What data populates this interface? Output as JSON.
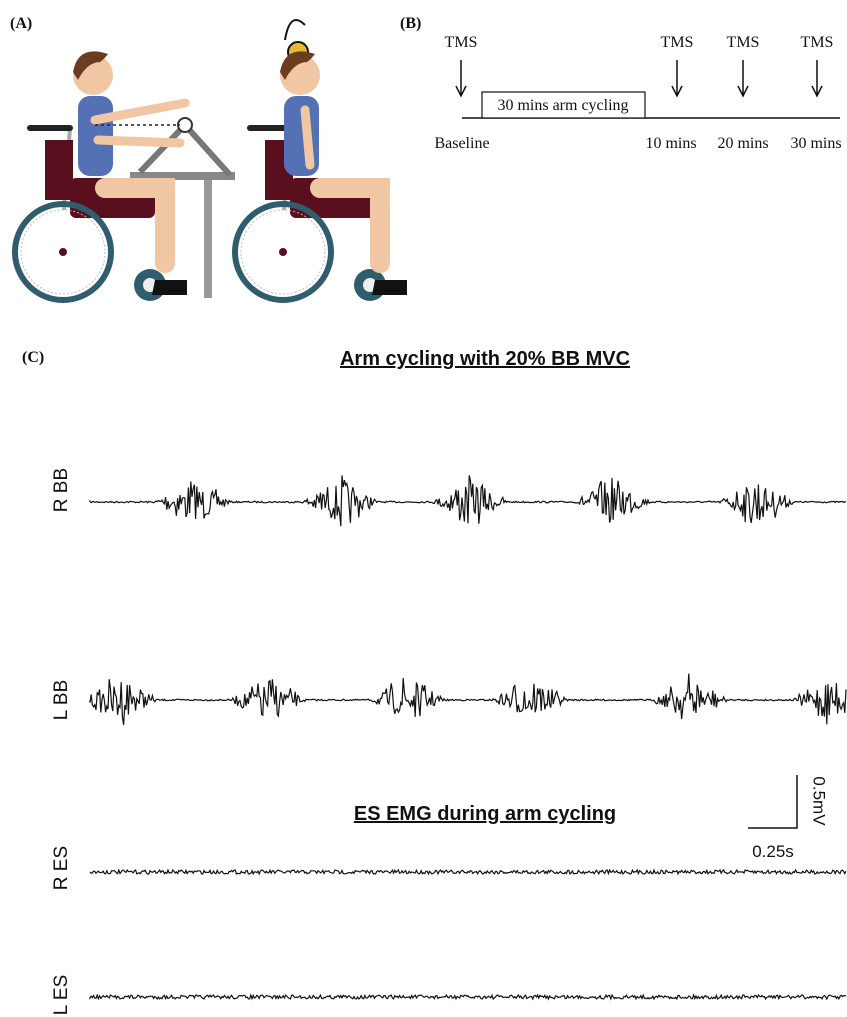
{
  "panels": {
    "a": {
      "label": "(A)"
    },
    "b": {
      "label": "(B)",
      "stimulus_labels": [
        "TMS",
        "TMS",
        "TMS",
        "TMS"
      ],
      "intervention": "30 mins arm cycling",
      "timepoints": [
        "Baseline",
        "10 mins",
        "20 mins",
        "30 mins"
      ]
    },
    "c": {
      "label": "(C)",
      "title": "Arm cycling with 20% BB MVC",
      "bb_traces": [
        "R BB",
        "L BB"
      ],
      "subtitle": "ES EMG during arm cycling",
      "es_traces": [
        "R ES",
        "L ES"
      ],
      "scale_bar": {
        "amplitude": "0.5mV",
        "time": "0.25s"
      }
    }
  }
}
